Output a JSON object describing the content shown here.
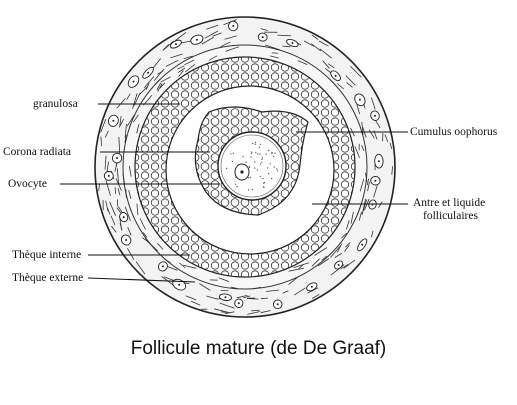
{
  "labels": {
    "granulosa": "granulosa",
    "corona": "Corona radiata",
    "ovocyte": "Ovocyte",
    "theque_interne": "Thèque interne",
    "theque_externe": "Thèque externe",
    "cumulus": "Cumulus oophorus",
    "antre_1": "Antre et liquide",
    "antre_2": "folliculaires"
  },
  "caption": "Follicule mature (de De Graaf)"
}
